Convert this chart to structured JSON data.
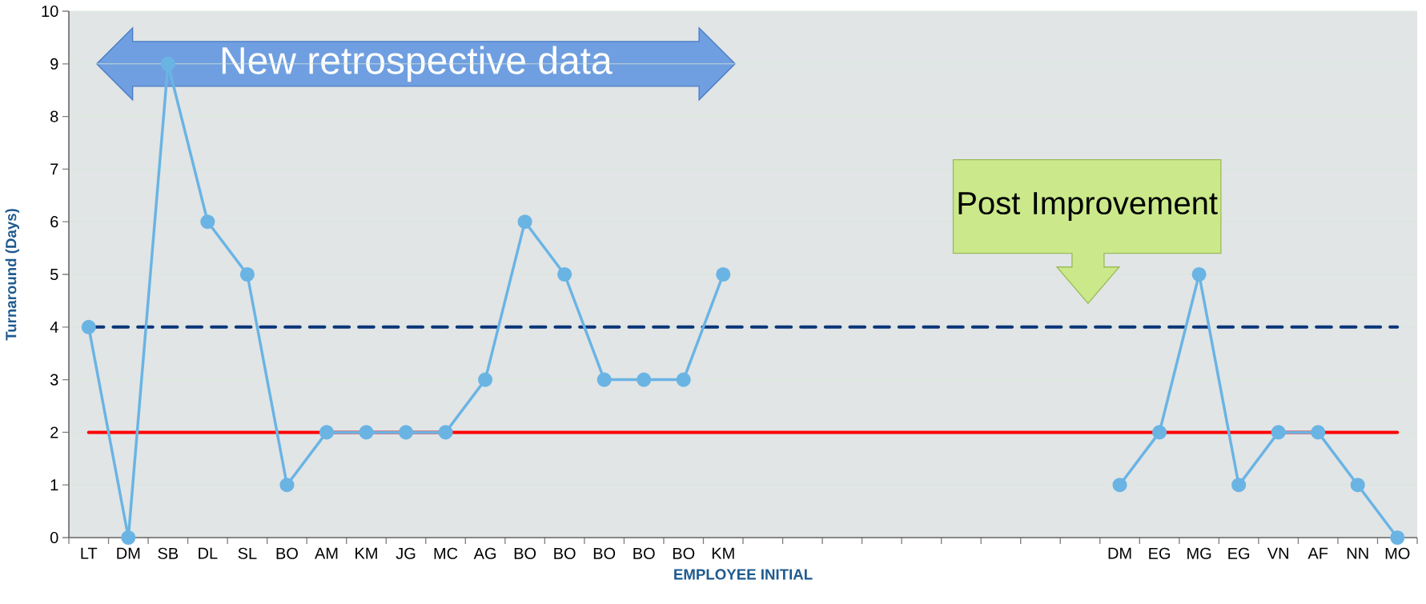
{
  "chart_data": {
    "type": "line",
    "xlabel": "EMPLOYEE INITIAL",
    "ylabel": "Turnaround (Days)",
    "categories": [
      "LT",
      "DM",
      "SB",
      "DL",
      "SL",
      "BO",
      "AM",
      "KM",
      "JG",
      "MC",
      "AG",
      "BO",
      "BO",
      "BO",
      "BO",
      "BO",
      "KM",
      null,
      null,
      null,
      null,
      null,
      null,
      null,
      null,
      null,
      "DM",
      "EG",
      "MG",
      "EG",
      "VN",
      "AF",
      "NN",
      "MO"
    ],
    "series": [
      {
        "color": "#6ab4e4",
        "values": [
          4,
          0,
          9,
          6,
          5,
          1,
          2,
          2,
          2,
          2,
          3,
          6,
          5,
          3,
          3,
          3,
          5,
          null,
          null,
          null,
          null,
          null,
          null,
          null,
          null,
          null,
          1,
          2,
          5,
          1,
          2,
          2,
          1,
          0
        ]
      }
    ],
    "ylim": [
      0,
      10
    ],
    "yticks": [
      0,
      1,
      2,
      3,
      4,
      5,
      6,
      7,
      8,
      9,
      10
    ],
    "grid": "y",
    "marker": "circle",
    "line_style": "solid",
    "ref_lines": [
      {
        "axis": "y",
        "value": 4,
        "color": "#0a3578",
        "line_style": "dashed"
      },
      {
        "axis": "y",
        "value": 2,
        "color": "#ff0000",
        "line_style": "solid"
      }
    ],
    "annotations": [
      "New retrospective data",
      "Post Improvement"
    ]
  }
}
